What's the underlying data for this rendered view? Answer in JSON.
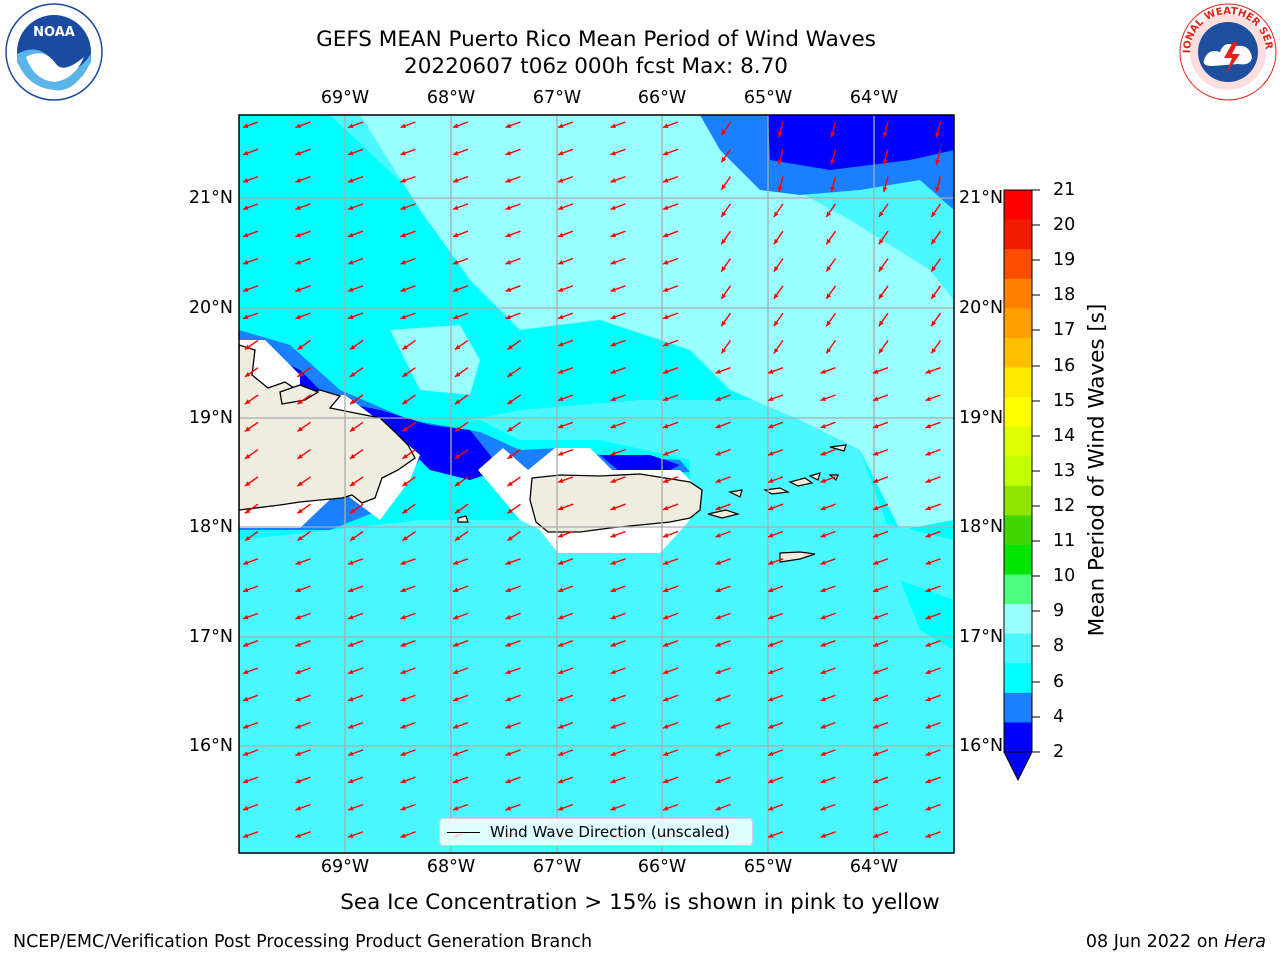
{
  "title_line1": "GEFS MEAN Puerto Rico Mean Period of Wind Waves",
  "title_line2": "20220607 t06z 000h fcst   Max: 8.70",
  "logos": {
    "left": {
      "name": "noaa-logo",
      "text": "NOAA",
      "ring_text": "NATIONAL OCEANIC AND ATMOSPHERIC ADMINISTRATION · U.S. DEPARTMENT OF COMMERCE",
      "colors": [
        "#1a4ba0",
        "#5bb5e8",
        "#ffffff"
      ]
    },
    "right": {
      "name": "nws-logo",
      "ring_text": "NATIONAL WEATHER SERVICE",
      "colors": [
        "#e2231a",
        "#1d4f9c",
        "#ffffff"
      ]
    }
  },
  "map": {
    "lon_labels": [
      "69°W",
      "68°W",
      "67°W",
      "66°W",
      "65°W",
      "64°W"
    ],
    "lat_labels": [
      "21°N",
      "20°N",
      "19°N",
      "18°N",
      "17°N",
      "16°N"
    ],
    "lon_range": [
      -70.0,
      -63.25
    ],
    "lat_range": [
      15.0,
      21.75
    ],
    "grid": true,
    "land_color": "#efeddf",
    "vector_color": "#ff0000",
    "vector_direction": "towards west-northwest",
    "legend": {
      "label": "Wind Wave Direction (unscaled)"
    }
  },
  "colorbar": {
    "title": "Mean Period of Wind Waves [s]",
    "ticks": [
      "21",
      "20",
      "19",
      "18",
      "17",
      "16",
      "15",
      "14",
      "13",
      "12",
      "11",
      "10",
      "9",
      "8",
      "6",
      "4",
      "2"
    ],
    "colors": [
      "#ff0000",
      "#f21a00",
      "#ff4d00",
      "#ff7f00",
      "#ff9f00",
      "#ffbf00",
      "#ffe800",
      "#ffff00",
      "#e0ff00",
      "#bfff00",
      "#8ee600",
      "#40d600",
      "#00e600",
      "#4cff7f",
      "#99ffff",
      "#4cf8ff",
      "#00ffff",
      "#1a80ff",
      "#0000ff"
    ],
    "under_color": "#0000ff"
  },
  "note": "Sea Ice Concentration > 15% is shown in pink to yellow",
  "footer": {
    "left": "NCEP/EMC/Verification Post Processing Product Generation Branch",
    "date": "08 Jun 2022 on",
    "host": "Hera"
  }
}
